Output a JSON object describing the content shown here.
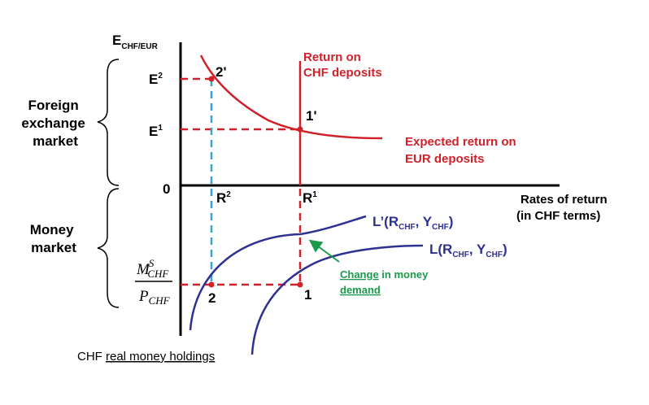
{
  "colors": {
    "axis": "#000000",
    "red": "#d0202a",
    "blue": "#2e3192",
    "cyan": "#3aa0d8",
    "green": "#1a9a4a",
    "text": "#000000"
  },
  "axes": {
    "y_label_main": "E",
    "y_label_sub": "CHF/EUR",
    "origin": "0",
    "x_label_line1": "Rates of return",
    "x_label_line2": "(in CHF terms)",
    "bottom_label_1": "CHF ",
    "bottom_label_2": "real money holdings"
  },
  "sections": {
    "fx_line1": "Foreign",
    "fx_line2": "exchange",
    "fx_line3": "market",
    "mm_line1": "Money",
    "mm_line2": "market"
  },
  "fx_market": {
    "e2_main": "E",
    "e2_sup": "2",
    "e1_main": "E",
    "e1_sup": "1",
    "point_2prime": "2'",
    "point_1prime": "1'",
    "chf_return_line1": "Return on",
    "chf_return_line2": "CHF deposits",
    "eur_return_line1": "Expected return on",
    "eur_return_line2": "EUR deposits"
  },
  "rates": {
    "r2_main": "R",
    "r2_sup": "2",
    "r1_main": "R",
    "r1_sup": "1"
  },
  "money_market": {
    "ms_M": "M",
    "ms_S": "S",
    "ms_sub": "CHF",
    "ms_P": "P",
    "ms_psub": "CHF",
    "point_2": "2",
    "point_1": "1",
    "lprime_main": "L’(R",
    "lprime_sub1": "CHF",
    "lprime_mid": ", Y",
    "lprime_sub2": "CHF",
    "lprime_end": ")",
    "l_main": "L(R",
    "l_sub1": "CHF",
    "l_mid": ", Y",
    "l_sub2": "CHF",
    "l_end": ")",
    "change_line1a": "Change",
    "change_line1b": " in money",
    "change_line2": "demand"
  }
}
